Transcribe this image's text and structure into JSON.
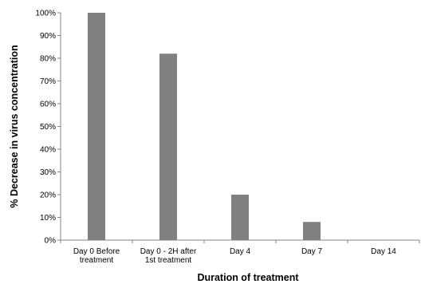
{
  "chart_data": {
    "type": "bar",
    "title": "",
    "xlabel": "Duration of treatment",
    "ylabel": "% Decrease in virus concentration",
    "categories": [
      [
        "Day 0 Before",
        "treatment"
      ],
      [
        "Day 0 - 2H after",
        "1st treatment"
      ],
      [
        "Day 4"
      ],
      [
        "Day 7"
      ],
      [
        "Day 14"
      ]
    ],
    "values": [
      100,
      82,
      20,
      8,
      0
    ],
    "ylim": [
      0,
      100
    ],
    "yticks": [
      0,
      10,
      20,
      30,
      40,
      50,
      60,
      70,
      80,
      90,
      100
    ],
    "ytick_format": "percent",
    "grid": false,
    "legend": "none",
    "bar_color": "#808080"
  }
}
